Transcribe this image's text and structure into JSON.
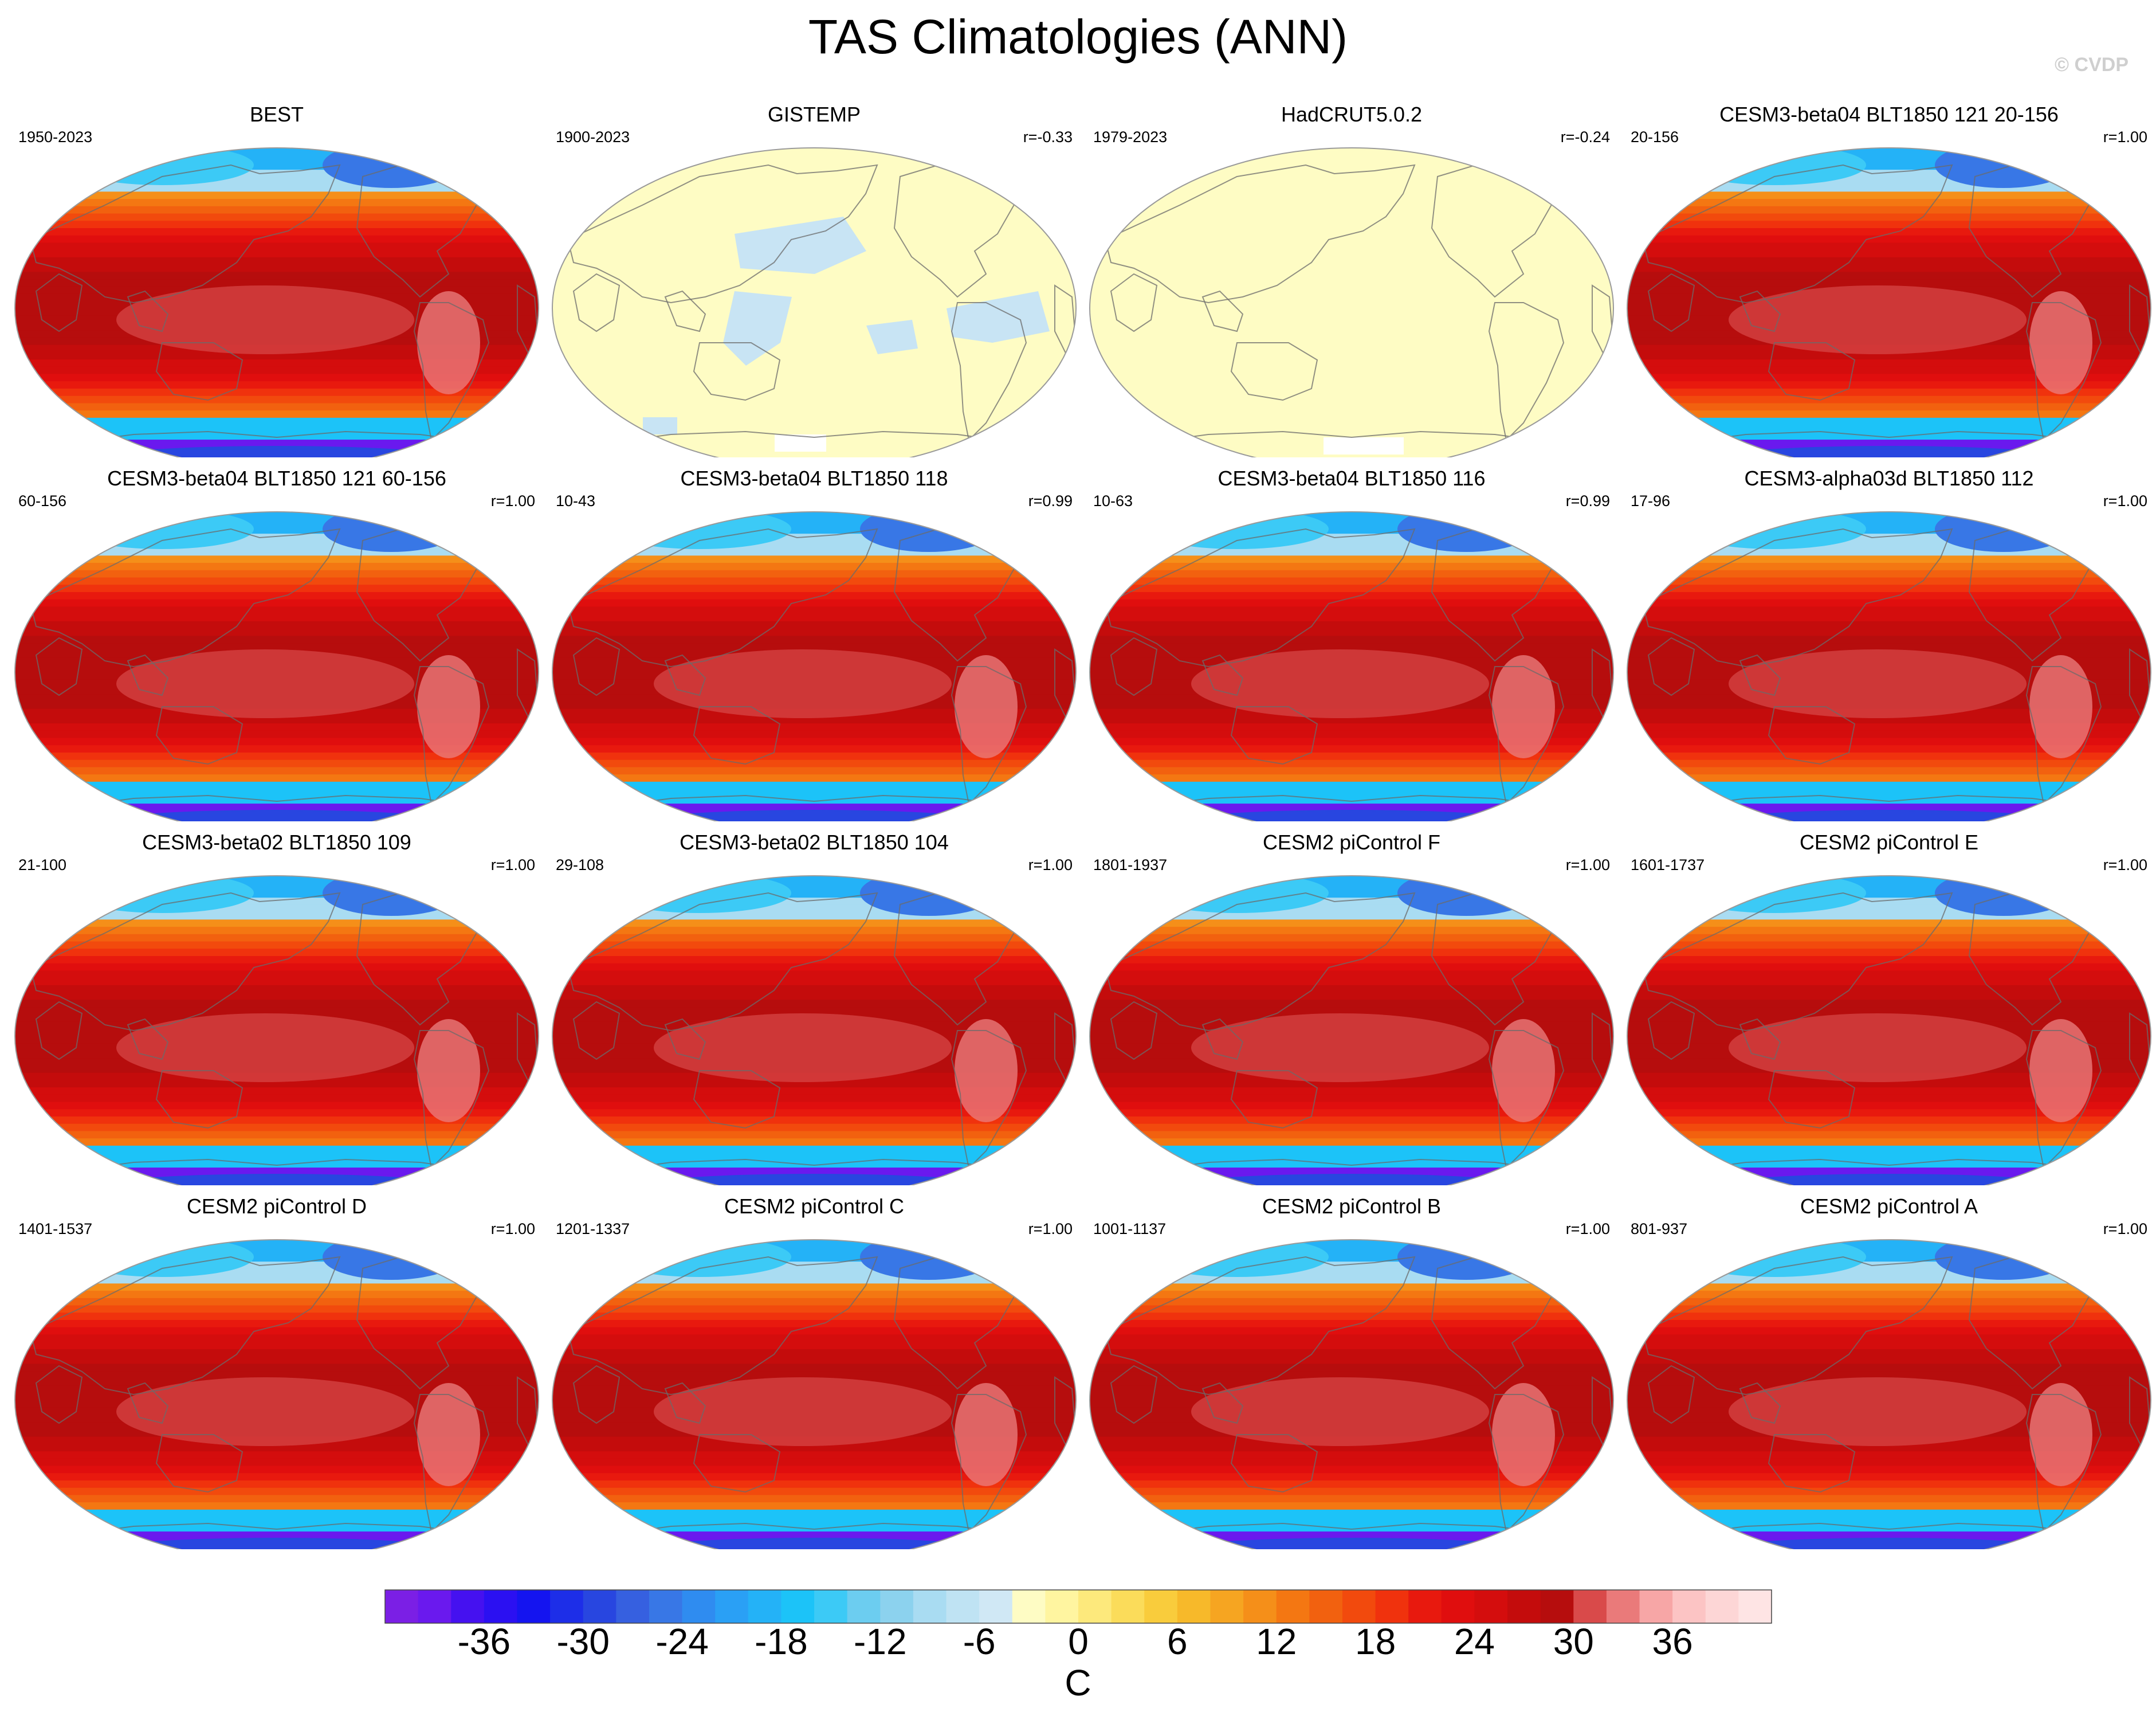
{
  "figure": {
    "title": "TAS Climatologies (ANN)",
    "watermark": "© CVDP"
  },
  "colorbar": {
    "units": "C",
    "tick_labels": [
      "-36",
      "-30",
      "-24",
      "-18",
      "-12",
      "-6",
      "0",
      "6",
      "12",
      "18",
      "24",
      "30",
      "36"
    ],
    "tick_values": [
      -36,
      -30,
      -24,
      -18,
      -12,
      -6,
      0,
      6,
      12,
      18,
      24,
      30,
      36
    ],
    "min": -42,
    "max": 42,
    "step": 2,
    "colors": [
      "#7b1fe5",
      "#6a19ee",
      "#4511f0",
      "#2b10f2",
      "#1414f0",
      "#1d2ee8",
      "#2846e0",
      "#3660e0",
      "#3877e6",
      "#2f8cf0",
      "#2aa0f5",
      "#24b2f7",
      "#1cc3f8",
      "#3ccaf6",
      "#6ccdf0",
      "#8cd2ee",
      "#a9dcf2",
      "#bfe3f3",
      "#d0e8f5",
      "#fefcc4",
      "#fff5a0",
      "#fde97c",
      "#fbdc5a",
      "#f9cc3c",
      "#f7b92a",
      "#f6a521",
      "#f58f19",
      "#f47712",
      "#f2610f",
      "#f24a0d",
      "#f0320d",
      "#e8190e",
      "#e00e0e",
      "#d40d0d",
      "#c40c0c",
      "#b60d0d",
      "#d94a4a",
      "#ea7a7a",
      "#f7a6a6",
      "#fcc4c4",
      "#fdd6d6",
      "#fee4e4"
    ]
  },
  "panels": [
    {
      "title": "BEST",
      "period": "1950-2023",
      "corr": "",
      "style": "full"
    },
    {
      "title": "GISTEMP",
      "period": "1900-2023",
      "corr": "r=-0.33",
      "style": "anomaly"
    },
    {
      "title": "HadCRUT5.0.2",
      "period": "1979-2023",
      "corr": "r=-0.24",
      "style": "flat"
    },
    {
      "title": "CESM3-beta04 BLT1850 121 20-156",
      "period": "20-156",
      "corr": "r=1.00",
      "style": "full"
    },
    {
      "title": "CESM3-beta04 BLT1850 121 60-156",
      "period": "60-156",
      "corr": "r=1.00",
      "style": "full"
    },
    {
      "title": "CESM3-beta04 BLT1850 118",
      "period": "10-43",
      "corr": "r=0.99",
      "style": "full"
    },
    {
      "title": "CESM3-beta04 BLT1850 116",
      "period": "10-63",
      "corr": "r=0.99",
      "style": "full"
    },
    {
      "title": "CESM3-alpha03d BLT1850 112",
      "period": "17-96",
      "corr": "r=1.00",
      "style": "full"
    },
    {
      "title": "CESM3-beta02 BLT1850 109",
      "period": "21-100",
      "corr": "r=1.00",
      "style": "full"
    },
    {
      "title": "CESM3-beta02 BLT1850 104",
      "period": "29-108",
      "corr": "r=1.00",
      "style": "full"
    },
    {
      "title": "CESM2 piControl F",
      "period": "1801-1937",
      "corr": "r=1.00",
      "style": "full"
    },
    {
      "title": "CESM2 piControl E",
      "period": "1601-1737",
      "corr": "r=1.00",
      "style": "full"
    },
    {
      "title": "CESM2 piControl D",
      "period": "1401-1537",
      "corr": "r=1.00",
      "style": "full"
    },
    {
      "title": "CESM2 piControl C",
      "period": "1201-1337",
      "corr": "r=1.00",
      "style": "full"
    },
    {
      "title": "CESM2 piControl B",
      "period": "1001-1137",
      "corr": "r=1.00",
      "style": "full"
    },
    {
      "title": "CESM2 piControl A",
      "period": "801-937",
      "corr": "r=1.00",
      "style": "full"
    }
  ]
}
